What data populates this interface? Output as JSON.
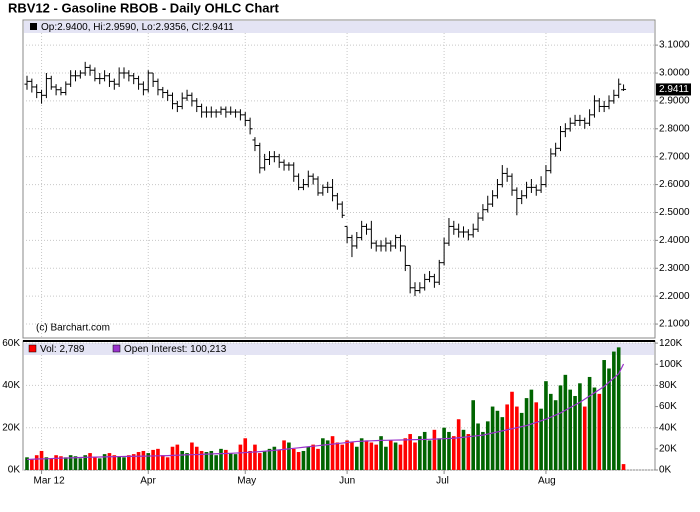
{
  "chart_data": [
    {
      "type": "ohlc",
      "title": "RBV12 - Gasoline RBOB - Daily OHLC Chart",
      "header": "Op:2.9400, Hi:2.9590, Lo:2.9356, Cl:2.9411",
      "copyright": "(c) Barchart.com",
      "close_label": "2.9411",
      "color": "#000000",
      "grid": true,
      "ylim": [
        2.05,
        3.19
      ],
      "yticks": [
        {
          "value": 2.1,
          "label": "2.1000"
        },
        {
          "value": 2.2,
          "label": "2.2000"
        },
        {
          "value": 2.3,
          "label": "2.3000"
        },
        {
          "value": 2.4,
          "label": "2.4000"
        },
        {
          "value": 2.5,
          "label": "2.5000"
        },
        {
          "value": 2.6,
          "label": "2.6000"
        },
        {
          "value": 2.7,
          "label": "2.7000"
        },
        {
          "value": 2.8,
          "label": "2.8000"
        },
        {
          "value": 2.9,
          "label": "2.9000"
        },
        {
          "value": 3.0,
          "label": "3.0000"
        },
        {
          "value": 3.1,
          "label": "3.1000"
        }
      ],
      "categories": [
        null,
        null,
        null,
        "Mar 12",
        null,
        null,
        null,
        null,
        null,
        null,
        null,
        null,
        null,
        null,
        null,
        null,
        null,
        null,
        null,
        null,
        null,
        null,
        null,
        null,
        null,
        "Apr",
        null,
        null,
        null,
        null,
        null,
        null,
        null,
        null,
        null,
        null,
        null,
        null,
        null,
        null,
        null,
        null,
        null,
        null,
        null,
        "May",
        null,
        null,
        null,
        null,
        null,
        null,
        null,
        null,
        null,
        null,
        null,
        null,
        null,
        null,
        null,
        null,
        null,
        null,
        null,
        null,
        "Jun",
        null,
        null,
        null,
        null,
        null,
        null,
        null,
        null,
        null,
        null,
        null,
        null,
        null,
        null,
        null,
        null,
        null,
        null,
        null,
        "Jul",
        null,
        null,
        null,
        null,
        null,
        null,
        null,
        null,
        null,
        null,
        null,
        null,
        null,
        null,
        null,
        null,
        null,
        null,
        null,
        null,
        "Aug",
        null,
        null,
        null,
        null,
        null,
        null,
        null,
        null,
        null,
        null,
        null,
        null,
        null,
        null,
        null,
        null
      ],
      "open": [
        2.96,
        2.97,
        2.95,
        2.93,
        2.92,
        2.98,
        2.95,
        2.94,
        2.93,
        2.96,
        2.99,
        2.99,
        3.0,
        3.02,
        3.01,
        2.98,
        2.98,
        2.99,
        2.97,
        2.96,
        3.0,
        3.0,
        2.99,
        2.98,
        2.96,
        2.94,
        3.0,
        2.97,
        2.94,
        2.93,
        2.92,
        2.89,
        2.88,
        2.91,
        2.92,
        2.9,
        2.88,
        2.86,
        2.86,
        2.86,
        2.86,
        2.87,
        2.86,
        2.86,
        2.86,
        2.85,
        2.83,
        2.76,
        2.74,
        2.66,
        2.69,
        2.7,
        2.7,
        2.68,
        2.67,
        2.67,
        2.63,
        2.59,
        2.6,
        2.63,
        2.62,
        2.57,
        2.59,
        2.59,
        2.56,
        2.53,
        2.45,
        2.41,
        2.38,
        2.41,
        2.45,
        2.44,
        2.39,
        2.38,
        2.38,
        2.39,
        2.38,
        2.41,
        2.38,
        2.31,
        2.23,
        2.22,
        2.23,
        2.26,
        2.27,
        2.25,
        2.32,
        2.39,
        2.45,
        2.44,
        2.43,
        2.43,
        2.42,
        2.44,
        2.48,
        2.51,
        2.53,
        2.56,
        2.6,
        2.64,
        2.63,
        2.58,
        2.55,
        2.56,
        2.59,
        2.59,
        2.58,
        2.6,
        2.65,
        2.71,
        2.73,
        2.79,
        2.8,
        2.82,
        2.83,
        2.83,
        2.82,
        2.85,
        2.9,
        2.88,
        2.88,
        2.9,
        2.92,
        2.94
      ],
      "high": [
        2.99,
        2.98,
        2.96,
        2.94,
        3.0,
        2.99,
        2.96,
        2.95,
        2.97,
        3.01,
        3.01,
        3.01,
        3.04,
        3.03,
        3.02,
        3.0,
        3.01,
        3.0,
        2.98,
        3.02,
        3.02,
        3.01,
        3.0,
        2.99,
        2.97,
        3.01,
        3.0,
        2.98,
        2.95,
        2.94,
        2.93,
        2.9,
        2.93,
        2.94,
        2.93,
        2.91,
        2.89,
        2.88,
        2.88,
        2.87,
        2.88,
        2.88,
        2.88,
        2.87,
        2.87,
        2.86,
        2.84,
        2.77,
        2.75,
        2.71,
        2.72,
        2.72,
        2.71,
        2.69,
        2.68,
        2.68,
        2.64,
        2.62,
        2.65,
        2.64,
        2.63,
        2.6,
        2.61,
        2.62,
        2.57,
        2.54,
        2.45,
        2.42,
        2.43,
        2.47,
        2.46,
        2.47,
        2.4,
        2.4,
        2.41,
        2.4,
        2.42,
        2.42,
        2.38,
        2.31,
        2.25,
        2.25,
        2.28,
        2.29,
        2.28,
        2.33,
        2.41,
        2.48,
        2.47,
        2.46,
        2.45,
        2.44,
        2.46,
        2.5,
        2.53,
        2.56,
        2.58,
        2.62,
        2.67,
        2.66,
        2.64,
        2.59,
        2.58,
        2.61,
        2.62,
        2.6,
        2.63,
        2.67,
        2.73,
        2.75,
        2.81,
        2.82,
        2.84,
        2.85,
        2.85,
        2.84,
        2.87,
        2.92,
        2.91,
        2.9,
        2.92,
        2.94,
        2.98,
        2.959
      ],
      "low": [
        2.94,
        2.93,
        2.91,
        2.89,
        2.91,
        2.94,
        2.92,
        2.92,
        2.92,
        2.95,
        2.97,
        2.98,
        2.99,
        2.99,
        2.97,
        2.96,
        2.97,
        2.95,
        2.94,
        2.95,
        2.98,
        2.97,
        2.96,
        2.94,
        2.92,
        2.93,
        2.95,
        2.92,
        2.91,
        2.9,
        2.87,
        2.86,
        2.87,
        2.9,
        2.88,
        2.86,
        2.84,
        2.84,
        2.84,
        2.84,
        2.85,
        2.84,
        2.85,
        2.84,
        2.83,
        2.81,
        2.78,
        2.72,
        2.64,
        2.65,
        2.67,
        2.68,
        2.66,
        2.65,
        2.65,
        2.61,
        2.58,
        2.58,
        2.59,
        2.6,
        2.56,
        2.56,
        2.57,
        2.54,
        2.51,
        2.48,
        2.39,
        2.34,
        2.37,
        2.4,
        2.42,
        2.37,
        2.36,
        2.36,
        2.36,
        2.36,
        2.37,
        2.36,
        2.29,
        2.21,
        2.2,
        2.21,
        2.22,
        2.25,
        2.23,
        2.24,
        2.31,
        2.38,
        2.42,
        2.41,
        2.41,
        2.4,
        2.41,
        2.43,
        2.47,
        2.5,
        2.52,
        2.55,
        2.59,
        2.61,
        2.56,
        2.49,
        2.53,
        2.55,
        2.57,
        2.56,
        2.57,
        2.59,
        2.64,
        2.7,
        2.72,
        2.77,
        2.79,
        2.81,
        2.81,
        2.8,
        2.81,
        2.84,
        2.86,
        2.86,
        2.87,
        2.89,
        2.91,
        2.9356
      ],
      "close": [
        2.97,
        2.95,
        2.93,
        2.92,
        2.98,
        2.95,
        2.94,
        2.93,
        2.96,
        2.99,
        2.99,
        3.0,
        3.02,
        3.01,
        2.98,
        2.98,
        2.99,
        2.97,
        2.96,
        3.0,
        3.0,
        2.99,
        2.98,
        2.96,
        2.94,
        3.0,
        2.97,
        2.94,
        2.93,
        2.92,
        2.89,
        2.88,
        2.91,
        2.92,
        2.9,
        2.88,
        2.86,
        2.86,
        2.86,
        2.86,
        2.87,
        2.86,
        2.86,
        2.86,
        2.85,
        2.83,
        2.8,
        2.74,
        2.66,
        2.69,
        2.7,
        2.7,
        2.68,
        2.67,
        2.67,
        2.63,
        2.59,
        2.6,
        2.63,
        2.62,
        2.57,
        2.59,
        2.59,
        2.56,
        2.53,
        2.49,
        2.41,
        2.38,
        2.41,
        2.45,
        2.44,
        2.39,
        2.38,
        2.38,
        2.39,
        2.38,
        2.41,
        2.38,
        2.31,
        2.23,
        2.22,
        2.23,
        2.26,
        2.27,
        2.25,
        2.32,
        2.39,
        2.45,
        2.44,
        2.43,
        2.43,
        2.42,
        2.44,
        2.48,
        2.51,
        2.53,
        2.56,
        2.6,
        2.64,
        2.63,
        2.58,
        2.55,
        2.56,
        2.59,
        2.59,
        2.58,
        2.6,
        2.65,
        2.71,
        2.73,
        2.79,
        2.8,
        2.82,
        2.83,
        2.83,
        2.82,
        2.85,
        2.9,
        2.88,
        2.88,
        2.9,
        2.92,
        2.96,
        2.9411
      ]
    },
    {
      "type": "volume",
      "ylim": [
        0,
        61000
      ],
      "yticks": [
        {
          "value": 0,
          "label": "0K"
        },
        {
          "value": 20000,
          "label": "20K"
        },
        {
          "value": 40000,
          "label": "40K"
        },
        {
          "value": 60000,
          "label": "60K"
        }
      ],
      "y2lim": [
        0,
        122000
      ],
      "y2ticks": [
        {
          "value": 0,
          "label": "0K"
        },
        {
          "value": 20000,
          "label": "20K"
        },
        {
          "value": 40000,
          "label": "40K"
        },
        {
          "value": 60000,
          "label": "60K"
        },
        {
          "value": 80000,
          "label": "80K"
        },
        {
          "value": 100000,
          "label": "100K"
        },
        {
          "value": 120000,
          "label": "120K"
        }
      ],
      "up_color": "#006400",
      "down_color": "#ff0000",
      "series": [
        {
          "name": "Vol: 2,789",
          "color": "#ff0000",
          "values": [
            6000,
            5000,
            7000,
            9000,
            6000,
            5500,
            7000,
            6500,
            6000,
            7000,
            6500,
            5500,
            7000,
            8000,
            6000,
            5500,
            7500,
            8000,
            7000,
            6500,
            6000,
            7000,
            7500,
            8500,
            9000,
            8000,
            9500,
            10000,
            7000,
            6000,
            11000,
            12000,
            9000,
            8000,
            13000,
            11000,
            9000,
            8500,
            9000,
            7000,
            10000,
            9500,
            8000,
            7500,
            12000,
            15000,
            9000,
            12000,
            8000,
            9000,
            10000,
            11000,
            9500,
            14000,
            13000,
            10000,
            8500,
            9000,
            11000,
            12000,
            10000,
            15000,
            14000,
            16000,
            13000,
            12000,
            14000,
            13000,
            11000,
            15000,
            14000,
            13000,
            12000,
            16000,
            11000,
            14000,
            13000,
            12000,
            15000,
            17000,
            13000,
            16000,
            18000,
            14000,
            19000,
            15000,
            20000,
            18000,
            16000,
            24000,
            19000,
            17000,
            33000,
            22000,
            18000,
            23000,
            30000,
            28000,
            25000,
            31000,
            37000,
            30000,
            27000,
            34000,
            38000,
            32000,
            29000,
            42000,
            36000,
            33000,
            40000,
            45000,
            38000,
            35000,
            41000,
            30000,
            44000,
            39000,
            36000,
            52000,
            48000,
            56000,
            58000,
            2789
          ]
        },
        {
          "name": "Open Interest: 100,213",
          "color": "#9933cc",
          "axis": "y2",
          "values": [
            10000,
            10200,
            10400,
            10500,
            10600,
            10800,
            11000,
            11200,
            11300,
            11500,
            11600,
            11800,
            12000,
            12100,
            12200,
            12300,
            12400,
            12500,
            12600,
            12700,
            12800,
            12900,
            13000,
            13000,
            13100,
            13200,
            13300,
            13400,
            13500,
            13600,
            13800,
            14000,
            14200,
            14400,
            14500,
            14600,
            14800,
            15000,
            15200,
            15400,
            15500,
            15600,
            15800,
            16000,
            16200,
            16500,
            16800,
            17000,
            17400,
            17800,
            18200,
            18600,
            19000,
            19500,
            20000,
            20500,
            21000,
            21500,
            22000,
            22500,
            23000,
            23500,
            24000,
            24500,
            25000,
            25500,
            26000,
            26500,
            27000,
            27200,
            27400,
            27600,
            27800,
            28000,
            28100,
            28200,
            28300,
            28400,
            28500,
            28600,
            28700,
            28800,
            28900,
            29000,
            29200,
            29400,
            29600,
            29800,
            30000,
            30500,
            31000,
            31500,
            32000,
            32500,
            33000,
            34000,
            35000,
            36000,
            37000,
            38000,
            39000,
            40000,
            41000,
            42000,
            43500,
            45000,
            46500,
            48000,
            50000,
            52000,
            54000,
            56500,
            59000,
            61500,
            64000,
            67000,
            70000,
            73000,
            76000,
            79000,
            83000,
            87000,
            91000,
            100213
          ]
        }
      ]
    }
  ]
}
